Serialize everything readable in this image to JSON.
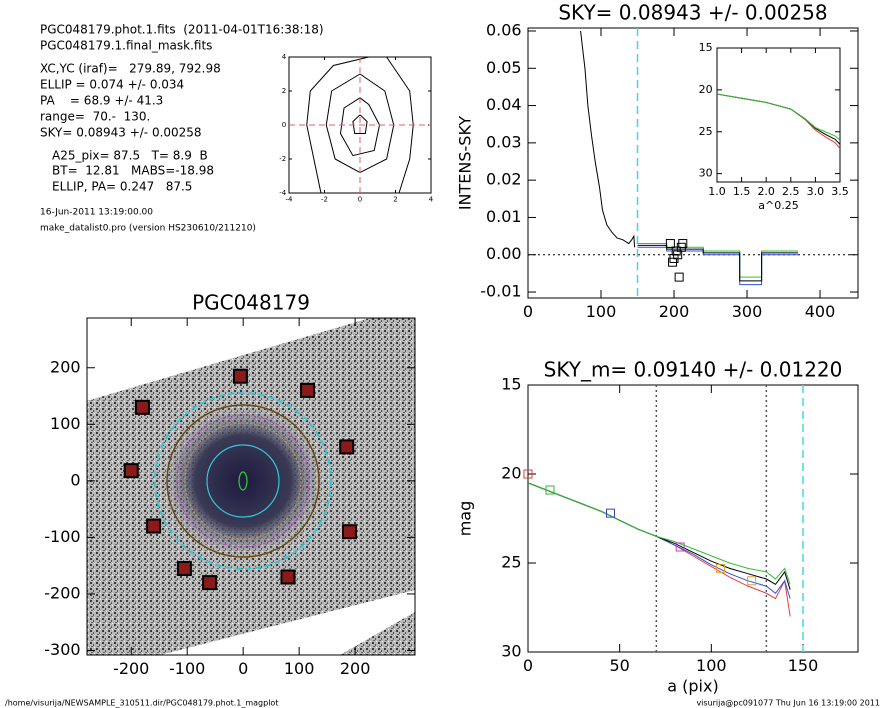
{
  "info": [
    "PGC048179.phot.1.fits  (2011-04-01T16:38:18)",
    "PGC048179.1.final_mask.fits",
    "XC,YC (iraf)=   279.89, 792.98",
    "ELLIP = 0.074 +/- 0.034",
    "PA    = 68.9 +/- 41.3",
    "range=  70.-  130.",
    "SKY= 0.08943 +/- 0.00258",
    "A25_pix= 87.5   T= 8.9  B",
    "BT=  12.81   MABS=-18.98",
    "ELLIP, PA= 0.247   87.5",
    "16-Jun-2011 13:19:00.00",
    "make_datalist0.pro (version HS230610/211210)"
  ],
  "footer": {
    "left": "/home/visurija/NEWSAMPLE_310511.dir/PGC048179.phot.1_magplot",
    "right": "visurija@pc091077  Thu Jun 16 13:19:00 2011"
  },
  "chart_data": [
    {
      "type": "contour",
      "xlim": [
        -4,
        4
      ],
      "ylim": [
        -4,
        4
      ],
      "xticks": [
        -4,
        -2,
        0,
        2,
        4
      ],
      "yticks": [
        -4,
        -2,
        0,
        2,
        4
      ],
      "color": "#000000",
      "crosshair": {
        "x": 0,
        "y": 0,
        "color": "#e06060"
      },
      "contours": [
        {
          "x": [
            0.5,
            -1.5,
            -2.8,
            -3,
            -2.5,
            -2.2
          ],
          "y": [
            4,
            3.5,
            2,
            0,
            -2.5,
            -4
          ]
        },
        {
          "x": [
            1.5,
            2.8,
            3,
            2.8,
            2.2
          ],
          "y": [
            4,
            2,
            0,
            -2,
            -4
          ]
        },
        {
          "x": [
            0,
            -1.6,
            -1.9,
            -1.4,
            0,
            1.5,
            1.9,
            1.4,
            0
          ],
          "y": [
            3,
            2,
            0,
            -2,
            -2.8,
            -2,
            0,
            2,
            3
          ]
        },
        {
          "x": [
            0,
            -0.9,
            -1.1,
            -0.4,
            0.8,
            1.1,
            0.5,
            0
          ],
          "y": [
            1.6,
            1,
            -0.5,
            -1.8,
            -1.5,
            0,
            1.2,
            1.6
          ]
        },
        {
          "x": [
            0,
            -0.4,
            -0.3,
            0.3,
            0.4,
            0
          ],
          "y": [
            0.6,
            0.2,
            -0.5,
            -0.5,
            0.2,
            0.6
          ]
        }
      ]
    },
    {
      "type": "line",
      "title": "SKY= 0.08943 +/- 0.00258",
      "ylabel": "INTENS-SKY",
      "xlim": [
        0,
        452
      ],
      "ylim": [
        -0.0116,
        0.0608
      ],
      "xticks": [
        0,
        100,
        200,
        300,
        400
      ],
      "yticks": [
        -0.01,
        {
          "value": 0,
          "label": "0.00"
        },
        0.01,
        0.02,
        0.03,
        0.04,
        0.05,
        0.06
      ],
      "series": [
        {
          "color": "#000000",
          "x": [
            72,
            78,
            82,
            87,
            92,
            98,
            102,
            108,
            115,
            122,
            130,
            138,
            142,
            145,
            146
          ],
          "values": [
            0.06,
            0.05,
            0.04,
            0.032,
            0.025,
            0.018,
            0.012,
            0.008,
            0.006,
            0.0045,
            0.004,
            0.003,
            0.004,
            0.005,
            0.002
          ]
        },
        {
          "color": "#30c030",
          "x": [
            150,
            190,
            190,
            240,
            240,
            290,
            290,
            320,
            320,
            370
          ],
          "values": [
            0.003,
            0.003,
            0.002,
            0.002,
            0.001,
            0.001,
            -0.006,
            -0.006,
            0.001,
            0.001
          ]
        },
        {
          "color": "#3050e0",
          "x": [
            150,
            190,
            190,
            240,
            240,
            290,
            290,
            320,
            320,
            370
          ],
          "values": [
            0.002,
            0.002,
            0.001,
            0.001,
            0,
            0,
            -0.008,
            -0.008,
            0,
            0
          ]
        },
        {
          "color": "#000000",
          "x": [
            150,
            190,
            190,
            240,
            240,
            290,
            290,
            320,
            320,
            370
          ],
          "values": [
            0.0025,
            0.0025,
            0.0015,
            0.0015,
            0.0005,
            0.0005,
            -0.007,
            -0.007,
            0.0005,
            0.0005
          ]
        }
      ],
      "markers": {
        "x": [
          195,
          200,
          205,
          210,
          212,
          207,
          203,
          198
        ],
        "y": [
          0.003,
          -0.001,
          0,
          0.002,
          0.003,
          -0.006,
          0.001,
          -0.002
        ],
        "color": "#000000",
        "shape": "square"
      },
      "vlines": [
        {
          "x": 150,
          "color": "#40d8e8",
          "style": "dashed"
        }
      ],
      "hlines": [
        {
          "y": 0,
          "color": "#000000",
          "style": "dotted"
        }
      ]
    },
    {
      "type": "line",
      "xlabel": "a^0.25",
      "xlim": [
        1,
        3.5
      ],
      "ylim": [
        31,
        15
      ],
      "xticks": [
        {
          "value": 1,
          "label": "1.0"
        },
        1.5,
        {
          "value": 2,
          "label": "2.0"
        },
        2.5,
        {
          "value": 3,
          "label": "3.0"
        },
        3.5
      ],
      "yticks": [
        15,
        20,
        25,
        30
      ],
      "series": [
        {
          "color": "#e04040",
          "x": [
            1,
            1.5,
            2,
            2.5,
            2.8,
            3,
            3.2,
            3.4,
            3.5
          ],
          "values": [
            20.5,
            21,
            21.5,
            22.3,
            23.6,
            24.8,
            25.6,
            26.3,
            27
          ]
        },
        {
          "color": "#000000",
          "x": [
            1,
            1.5,
            2,
            2.5,
            2.8,
            3,
            3.2,
            3.4,
            3.5
          ],
          "values": [
            20.5,
            21,
            21.5,
            22.3,
            23.5,
            24.6,
            25.3,
            25.9,
            26.5
          ]
        },
        {
          "color": "#30c030",
          "x": [
            1,
            1.5,
            2,
            2.5,
            2.8,
            3,
            3.2,
            3.4,
            3.5
          ],
          "values": [
            20.5,
            21,
            21.5,
            22.3,
            23.5,
            24.5,
            25,
            25.5,
            26
          ]
        }
      ]
    },
    {
      "type": "image",
      "title": "PGC048179",
      "xlim": [
        -279,
        307
      ],
      "ylim": [
        -308,
        288
      ],
      "xticks": [
        -200,
        -100,
        0,
        100,
        200
      ],
      "yticks": [
        -300,
        -200,
        -100,
        0,
        100,
        200
      ],
      "markers": {
        "x": [
          -180,
          -5,
          115,
          185,
          -200,
          -160,
          190,
          -105,
          -60,
          80
        ],
        "y": [
          130,
          185,
          160,
          60,
          18,
          -80,
          -90,
          -155,
          -180,
          -170
        ],
        "color": "#8b1a1a",
        "shape": "filled-square"
      }
    },
    {
      "type": "line",
      "title": "SKY_m=  0.09140 +/- 0.01220",
      "xlabel": "a (pix)",
      "ylabel": "mag",
      "xlim": [
        0,
        180
      ],
      "ylim": [
        30,
        15
      ],
      "xticks": [
        0,
        50,
        100,
        150
      ],
      "yticks": [
        15,
        20,
        25,
        30
      ],
      "series": [
        {
          "color": "#e04040",
          "x": [
            0,
            10,
            20,
            30,
            40,
            50,
            60,
            70,
            80,
            90,
            100,
            110,
            120,
            130,
            135,
            140,
            143
          ],
          "values": [
            20.5,
            20.9,
            21.3,
            21.7,
            22.1,
            22.6,
            23.1,
            23.5,
            24,
            24.6,
            25.2,
            25.8,
            26.3,
            26.7,
            27,
            26,
            28
          ]
        },
        {
          "color": "#3050e0",
          "x": [
            0,
            10,
            20,
            30,
            40,
            50,
            60,
            70,
            80,
            90,
            100,
            110,
            120,
            130,
            135,
            140,
            143
          ],
          "values": [
            20.5,
            20.9,
            21.3,
            21.7,
            22.1,
            22.6,
            23.1,
            23.5,
            24,
            24.5,
            25.1,
            25.6,
            26,
            26.3,
            26.7,
            26,
            27
          ]
        },
        {
          "color": "#000000",
          "x": [
            0,
            10,
            20,
            30,
            40,
            50,
            60,
            70,
            80,
            90,
            100,
            110,
            120,
            130,
            135,
            140,
            143
          ],
          "values": [
            20.5,
            20.9,
            21.3,
            21.7,
            22.1,
            22.6,
            23.1,
            23.5,
            23.9,
            24.4,
            24.9,
            25.3,
            25.6,
            25.9,
            26.2,
            25.5,
            26.5
          ]
        },
        {
          "color": "#30c030",
          "x": [
            0,
            10,
            20,
            30,
            40,
            50,
            60,
            70,
            80,
            90,
            100,
            110,
            120,
            130,
            135,
            140,
            143
          ],
          "values": [
            20.5,
            20.9,
            21.3,
            21.7,
            22.1,
            22.6,
            23.1,
            23.5,
            23.8,
            24.2,
            24.6,
            25,
            25.3,
            25.5,
            25.9,
            25.3,
            26.2
          ]
        }
      ],
      "markers": {
        "x": [
          0,
          12,
          45,
          83,
          105,
          122
        ],
        "y": [
          20,
          20.9,
          22.2,
          24.1,
          25.3,
          26
        ],
        "colors": [
          "#d04040",
          "#40b040",
          "#4040c0",
          "#c040c0",
          "#e0a030",
          "#e0a030"
        ],
        "shape": "square"
      },
      "vlines": [
        {
          "x": 70,
          "color": "#555555",
          "style": "dotted"
        },
        {
          "x": 130,
          "color": "#555555",
          "style": "dotted"
        },
        {
          "x": 150,
          "color": "#40d8e8",
          "style": "dashed"
        }
      ]
    }
  ]
}
